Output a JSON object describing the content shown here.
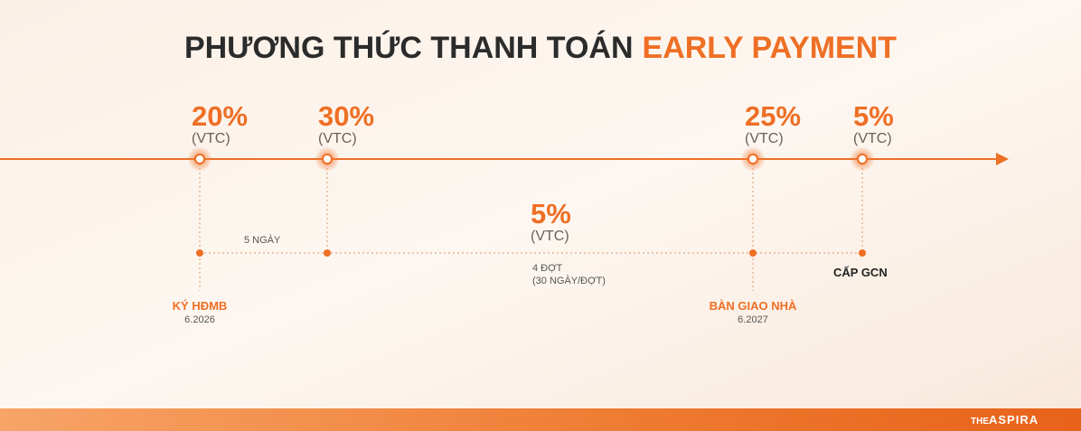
{
  "header": {
    "title": "PHƯƠNG THỨC THANH TOÁN",
    "highlight": "EARLY PAYMENT"
  },
  "milestones": [
    {
      "percent": "20%",
      "note": "(VTC)"
    },
    {
      "percent": "30%",
      "note": "(VTC)"
    },
    {
      "percent": "25%",
      "note": "(VTC)"
    },
    {
      "percent": "5%",
      "note": "(VTC)"
    }
  ],
  "installment": {
    "percent": "5%",
    "note": "(VTC)",
    "count": "4 ĐỢT",
    "interval": "(30 NGÀY/ĐỢT)"
  },
  "gap": "5 NGÀY",
  "events": [
    {
      "label": "KÝ HĐMB",
      "date": "6.2026"
    },
    {
      "label": "BÀN GIAO NHÀ",
      "date": "6.2027"
    },
    {
      "label": "CẤP GCN"
    }
  ],
  "footer": {
    "logo_prefix": "THE",
    "logo": "ASPIRA"
  }
}
